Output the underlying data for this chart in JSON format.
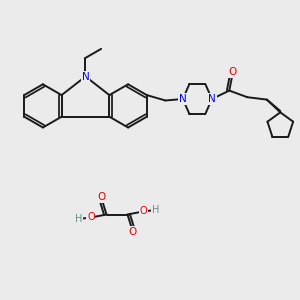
{
  "bg_color": "#ebebeb",
  "bond_color": "#1a1a1a",
  "N_color": "#0000ee",
  "O_color": "#ee0000",
  "H_color": "#6a8a8a",
  "line_width": 1.4,
  "figsize": [
    3.0,
    3.0
  ],
  "dpi": 100,
  "xlim": [
    0,
    10
  ],
  "ylim": [
    0,
    10
  ]
}
